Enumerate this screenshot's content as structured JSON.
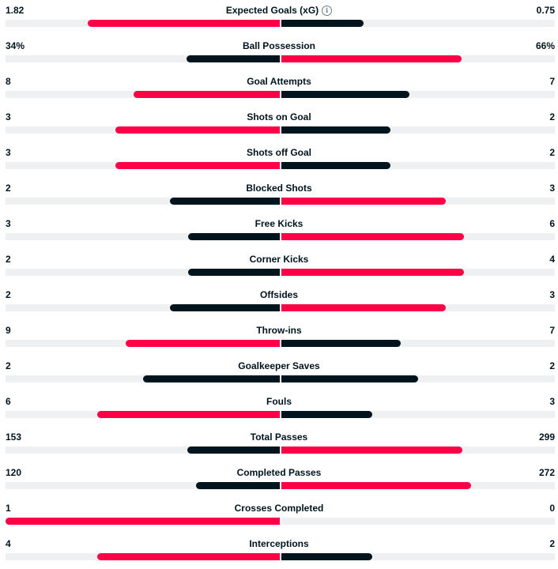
{
  "colors": {
    "leader": "#ff0046",
    "trailer": "#00141e",
    "track": "#eef0f1"
  },
  "stats": [
    {
      "label": "Expected Goals (xG)",
      "home": "1.82",
      "away": "0.75",
      "home_share": 0.7,
      "away_share": 0.3,
      "info": true
    },
    {
      "label": "Ball Possession",
      "home": "34%",
      "away": "66%",
      "home_share": 0.34,
      "away_share": 0.66
    },
    {
      "label": "Goal Attempts",
      "home": "8",
      "away": "7",
      "home_share": 0.533,
      "away_share": 0.467
    },
    {
      "label": "Shots on Goal",
      "home": "3",
      "away": "2",
      "home_share": 0.6,
      "away_share": 0.4
    },
    {
      "label": "Shots off Goal",
      "home": "3",
      "away": "2",
      "home_share": 0.6,
      "away_share": 0.4
    },
    {
      "label": "Blocked Shots",
      "home": "2",
      "away": "3",
      "home_share": 0.4,
      "away_share": 0.6
    },
    {
      "label": "Free Kicks",
      "home": "3",
      "away": "6",
      "home_share": 0.333,
      "away_share": 0.667
    },
    {
      "label": "Corner Kicks",
      "home": "2",
      "away": "4",
      "home_share": 0.333,
      "away_share": 0.667
    },
    {
      "label": "Offsides",
      "home": "2",
      "away": "3",
      "home_share": 0.4,
      "away_share": 0.6
    },
    {
      "label": "Throw-ins",
      "home": "9",
      "away": "7",
      "home_share": 0.5625,
      "away_share": 0.4375
    },
    {
      "label": "Goalkeeper Saves",
      "home": "2",
      "away": "2",
      "home_share": 0.5,
      "away_share": 0.5
    },
    {
      "label": "Fouls",
      "home": "6",
      "away": "3",
      "home_share": 0.667,
      "away_share": 0.333
    },
    {
      "label": "Total Passes",
      "home": "153",
      "away": "299",
      "home_share": 0.338,
      "away_share": 0.662
    },
    {
      "label": "Completed Passes",
      "home": "120",
      "away": "272",
      "home_share": 0.306,
      "away_share": 0.694
    },
    {
      "label": "Crosses Completed",
      "home": "1",
      "away": "0",
      "home_share": 1.0,
      "away_share": 0.0
    },
    {
      "label": "Interceptions",
      "home": "4",
      "away": "2",
      "home_share": 0.667,
      "away_share": 0.333
    }
  ],
  "info_icon": "info-icon",
  "info_glyph": "i"
}
